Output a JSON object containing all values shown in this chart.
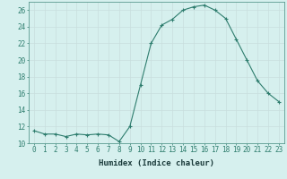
{
  "xlabel": "Humidex (Indice chaleur)",
  "x": [
    0,
    1,
    2,
    3,
    4,
    5,
    6,
    7,
    8,
    9,
    10,
    11,
    12,
    13,
    14,
    15,
    16,
    17,
    18,
    19,
    20,
    21,
    22,
    23
  ],
  "y": [
    11.5,
    11.1,
    11.1,
    10.8,
    11.1,
    11.0,
    11.1,
    11.0,
    10.2,
    12.0,
    17.0,
    22.0,
    24.2,
    24.9,
    26.0,
    26.4,
    26.6,
    26.0,
    25.0,
    22.5,
    20.0,
    17.5,
    16.0,
    15.0
  ],
  "line_color": "#2e7d6e",
  "marker": "+",
  "markersize": 3,
  "linewidth": 0.8,
  "ylim": [
    10,
    27
  ],
  "yticks": [
    10,
    12,
    14,
    16,
    18,
    20,
    22,
    24,
    26
  ],
  "xticks": [
    0,
    1,
    2,
    3,
    4,
    5,
    6,
    7,
    8,
    9,
    10,
    11,
    12,
    13,
    14,
    15,
    16,
    17,
    18,
    19,
    20,
    21,
    22,
    23
  ],
  "bg_color": "#d6f0ee",
  "grid_color": "#c8dedd",
  "tick_label_fontsize": 5.5,
  "xlabel_fontsize": 6.5
}
